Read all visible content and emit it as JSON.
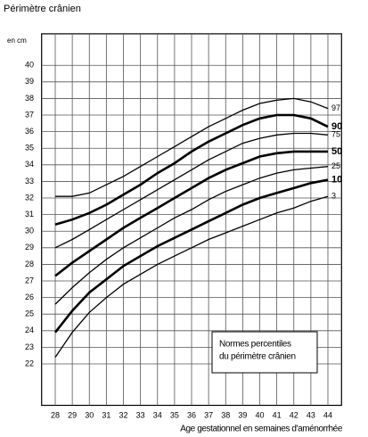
{
  "chart_data": {
    "type": "line",
    "title": "Périmètre crânien",
    "y_unit": "en cm",
    "x_label": "Age gestationnel en semaines d'aménorrhée",
    "annotation": [
      "Normes percentiles",
      "du périmètre crânien"
    ],
    "x": [
      28,
      29,
      30,
      31,
      32,
      33,
      34,
      35,
      36,
      37,
      38,
      39,
      40,
      41,
      42,
      43,
      44
    ],
    "xlim": [
      27.2,
      44.8
    ],
    "xticks": [
      28,
      29,
      30,
      31,
      32,
      33,
      34,
      35,
      36,
      37,
      38,
      39,
      40,
      41,
      42,
      43,
      44
    ],
    "ylim": [
      19.5,
      41.9
    ],
    "yticks": [
      22,
      23,
      24,
      25,
      26,
      27,
      28,
      29,
      30,
      31,
      32,
      33,
      34,
      35,
      36,
      37,
      38,
      39,
      40
    ],
    "grid": true,
    "series": [
      {
        "name": "97",
        "color": "#000000",
        "width": 1.3,
        "values": [
          32.1,
          32.1,
          32.3,
          32.8,
          33.3,
          33.9,
          34.5,
          35.1,
          35.7,
          36.3,
          36.8,
          37.3,
          37.7,
          37.9,
          38.0,
          37.8,
          37.4
        ]
      },
      {
        "name": "90",
        "color": "#000000",
        "width": 2.6,
        "values": [
          30.4,
          30.7,
          31.1,
          31.6,
          32.2,
          32.8,
          33.5,
          34.1,
          34.8,
          35.4,
          35.9,
          36.4,
          36.8,
          37.0,
          37.0,
          36.8,
          36.3
        ]
      },
      {
        "name": "75",
        "color": "#000000",
        "width": 1.3,
        "values": [
          29.0,
          29.5,
          30.1,
          30.7,
          31.3,
          31.9,
          32.5,
          33.1,
          33.7,
          34.3,
          34.8,
          35.3,
          35.6,
          35.8,
          35.9,
          35.9,
          35.8
        ]
      },
      {
        "name": "50",
        "color": "#000000",
        "width": 2.6,
        "values": [
          27.3,
          28.1,
          28.8,
          29.5,
          30.2,
          30.8,
          31.4,
          32.0,
          32.6,
          33.2,
          33.7,
          34.1,
          34.5,
          34.7,
          34.8,
          34.8,
          34.8
        ]
      },
      {
        "name": "25",
        "color": "#000000",
        "width": 1.3,
        "values": [
          25.6,
          26.6,
          27.5,
          28.3,
          29.0,
          29.6,
          30.2,
          30.8,
          31.3,
          31.9,
          32.4,
          32.8,
          33.2,
          33.5,
          33.7,
          33.8,
          33.9
        ]
      },
      {
        "name": "10",
        "color": "#000000",
        "width": 2.6,
        "values": [
          23.9,
          25.2,
          26.3,
          27.1,
          27.9,
          28.5,
          29.1,
          29.6,
          30.1,
          30.6,
          31.1,
          31.6,
          32.0,
          32.3,
          32.6,
          32.9,
          33.1
        ]
      },
      {
        "name": "3",
        "color": "#000000",
        "width": 1.3,
        "values": [
          22.4,
          23.9,
          25.1,
          26.0,
          26.8,
          27.4,
          28.0,
          28.5,
          29.0,
          29.5,
          29.9,
          30.3,
          30.7,
          31.1,
          31.4,
          31.8,
          32.1
        ]
      }
    ]
  }
}
